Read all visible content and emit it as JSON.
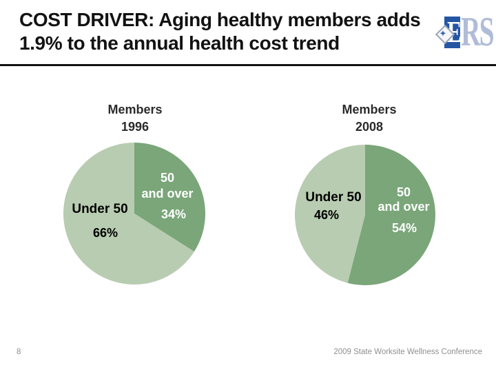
{
  "slide": {
    "title_line1": "COST DRIVER: Aging healthy members adds",
    "title_line2": "1.9% to the annual health cost trend",
    "page_number": "8",
    "footer_right": "2009 State Worksite Wellness Conference"
  },
  "logo": {
    "primary_letter": "E",
    "secondary_letters": "RS",
    "star_glyph": "✦",
    "colors": {
      "primary_bg": "#2456a4",
      "secondary_text": "#b0bcd8",
      "diamond_border": "#9aa3b5",
      "star": "#3a67b1"
    }
  },
  "chart_data": [
    {
      "type": "pie",
      "title": "Members 1996",
      "title_lines": [
        "Members",
        "1996"
      ],
      "start_angle_deg": 0,
      "direction": "clockwise",
      "legend": "none",
      "labels_inside": true,
      "slices": [
        {
          "label": "50 and over",
          "label_lines": [
            "50",
            "and over"
          ],
          "value": 34,
          "pct": "34%",
          "color": "#7aa679",
          "label_color": "#ffffff"
        },
        {
          "label": "Under 50",
          "value": 66,
          "pct": "66%",
          "color": "#b8ccb1",
          "label_color": "#000000"
        }
      ]
    },
    {
      "type": "pie",
      "title": "Members 2008",
      "title_lines": [
        "Members",
        "2008"
      ],
      "start_angle_deg": 0,
      "direction": "clockwise",
      "legend": "none",
      "labels_inside": true,
      "slices": [
        {
          "label": "50 and over",
          "label_lines": [
            "50",
            "and over"
          ],
          "value": 54,
          "pct": "54%",
          "color": "#7aa679",
          "label_color": "#ffffff"
        },
        {
          "label": "Under 50",
          "value": 46,
          "pct": "46%",
          "color": "#b8ccb1",
          "label_color": "#000000"
        }
      ]
    }
  ]
}
